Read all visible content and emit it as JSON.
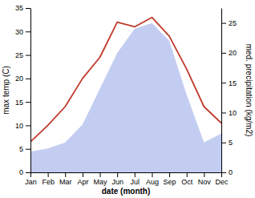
{
  "chart_data": {
    "type": "line",
    "categories": [
      "Jan",
      "Feb",
      "Mar",
      "Apr",
      "May",
      "Jun",
      "Jul",
      "Aug",
      "Sep",
      "Oct",
      "Nov",
      "Dec"
    ],
    "series": [
      {
        "type": "area",
        "axis": "y2",
        "color": "#b8c4ee",
        "values": [
          3.5,
          4.0,
          5.0,
          8.0,
          14.0,
          20.0,
          24.0,
          25.0,
          22.0,
          13.0,
          5.0,
          6.5
        ]
      },
      {
        "type": "line",
        "color": "#c0392b",
        "values": [
          6.5,
          10.0,
          14.0,
          20.0,
          24.5,
          32.0,
          31.0,
          33.0,
          29.0,
          22.0,
          14.0,
          10.5
        ]
      }
    ],
    "xlabel": "date (month)",
    "ylabel": "max temp (C)",
    "y2label": "med. precipitation (kg/m2)",
    "ylim": [
      0,
      35
    ],
    "yticks": [
      0,
      5,
      10,
      15,
      20,
      25,
      30,
      35
    ],
    "y2lim": [
      0,
      27.5
    ],
    "y2ticks": [
      0,
      5,
      10,
      15,
      20,
      25
    ]
  }
}
